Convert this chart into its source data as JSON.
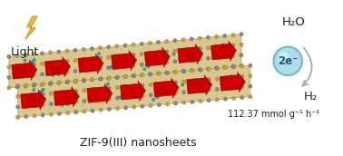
{
  "title": "ZIF-9(III) nanosheets",
  "light_text": "Light",
  "h2o_text": "H₂O",
  "h2_text": "H₂",
  "electron_text": "2e⁻",
  "rate_text": "112.37 mmol g⁻¹ h⁻¹",
  "bg_color": "#ffffff",
  "lightning_color": "#f0b820",
  "arrow_color": "#cc0000",
  "dot_gold": "#c8a030",
  "dot_grey": "#888888",
  "dot_teal": "#30a0a0",
  "electron_ball_color": "#b0dcea",
  "electron_ball_edge": "#70b8d0",
  "curve_arrow_color": "#aaaaaa",
  "text_color": "#222222",
  "sheet_face": "#d8c890",
  "sheet_edge": "#b09050"
}
